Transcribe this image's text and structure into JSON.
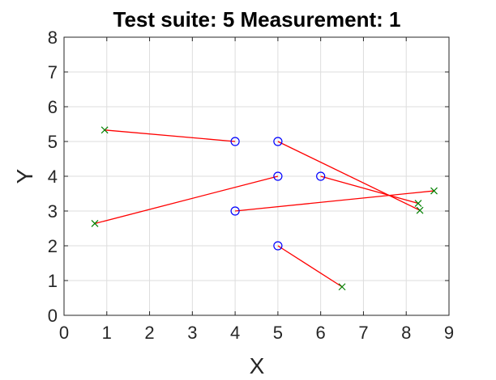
{
  "chart_data": {
    "type": "scatter",
    "title": "Test suite: 5   Measurement: 1",
    "xlabel": "X",
    "ylabel": "Y",
    "xlim": [
      0,
      9
    ],
    "ylim": [
      0,
      8
    ],
    "xticks": [
      "0",
      "1",
      "2",
      "3",
      "4",
      "5",
      "6",
      "7",
      "8",
      "9"
    ],
    "yticks": [
      "0",
      "1",
      "2",
      "3",
      "4",
      "5",
      "6",
      "7",
      "8"
    ],
    "grid": true,
    "colors": {
      "circle": "#0000ff",
      "cross": "#008000",
      "line": "#ff0000",
      "grid": "#dddddd",
      "axis": "#262626"
    },
    "circles": [
      {
        "x": 4,
        "y": 5
      },
      {
        "x": 5,
        "y": 5
      },
      {
        "x": 5,
        "y": 4
      },
      {
        "x": 6,
        "y": 4
      },
      {
        "x": 4,
        "y": 3
      },
      {
        "x": 5,
        "y": 2
      }
    ],
    "crosses": [
      {
        "x": 0.95,
        "y": 5.33
      },
      {
        "x": 8.32,
        "y": 3.02
      },
      {
        "x": 0.72,
        "y": 2.64
      },
      {
        "x": 8.28,
        "y": 3.22
      },
      {
        "x": 8.65,
        "y": 3.58
      },
      {
        "x": 6.5,
        "y": 0.82
      }
    ],
    "segments": [
      {
        "from": 0,
        "to": 0
      },
      {
        "from": 1,
        "to": 1
      },
      {
        "from": 2,
        "to": 2
      },
      {
        "from": 3,
        "to": 3
      },
      {
        "from": 4,
        "to": 4
      },
      {
        "from": 5,
        "to": 5
      }
    ]
  }
}
